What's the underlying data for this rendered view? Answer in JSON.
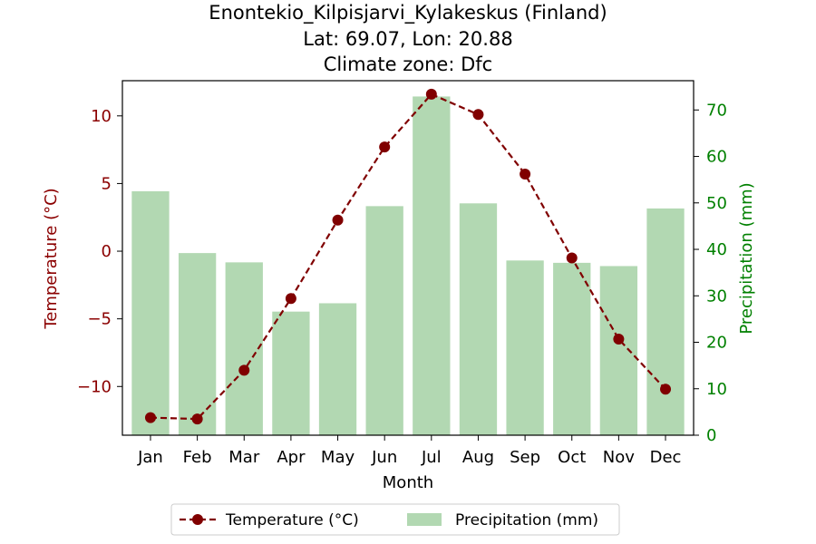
{
  "chart_data": {
    "type": "bar+line",
    "title_lines": [
      "Enontekio_Kilpisjarvi_Kylakeskus (Finland)",
      "Lat: 69.07, Lon: 20.88",
      "Climate zone: Dfc"
    ],
    "xlabel": "Month",
    "ylabel_left": "Temperature (°C)",
    "ylabel_right": "Precipitation (mm)",
    "categories": [
      "Jan",
      "Feb",
      "Mar",
      "Apr",
      "May",
      "Jun",
      "Jul",
      "Aug",
      "Sep",
      "Oct",
      "Nov",
      "Dec"
    ],
    "series": [
      {
        "name": "Temperature (°C)",
        "kind": "line",
        "axis": "left",
        "color": "#800000",
        "values": [
          -12.3,
          -12.4,
          -8.8,
          -3.5,
          2.3,
          7.7,
          11.6,
          10.1,
          5.7,
          -0.5,
          -6.5,
          -10.2
        ]
      },
      {
        "name": "Precipitation (mm)",
        "kind": "bar",
        "axis": "right",
        "color": "#b2d8b2",
        "values": [
          52.5,
          39.2,
          37.2,
          26.6,
          28.4,
          49.3,
          72.9,
          49.9,
          37.6,
          37.1,
          36.4,
          48.8
        ]
      }
    ],
    "ylim_left": [
      -13.6,
      12.6
    ],
    "ylim_right": [
      0,
      76.3
    ],
    "yticks_left": [
      -10,
      -5,
      0,
      5,
      10
    ],
    "yticks_right": [
      0,
      10,
      20,
      30,
      40,
      50,
      60,
      70
    ],
    "ytick_labels_left": [
      "−10",
      "−5",
      "0",
      "5",
      "10"
    ],
    "ytick_labels_right": [
      "0",
      "10",
      "20",
      "30",
      "40",
      "50",
      "60",
      "70"
    ],
    "left_axis_color": "#8b0000",
    "right_axis_color": "#008000",
    "grid": false,
    "legend_position": "bottom-center"
  }
}
